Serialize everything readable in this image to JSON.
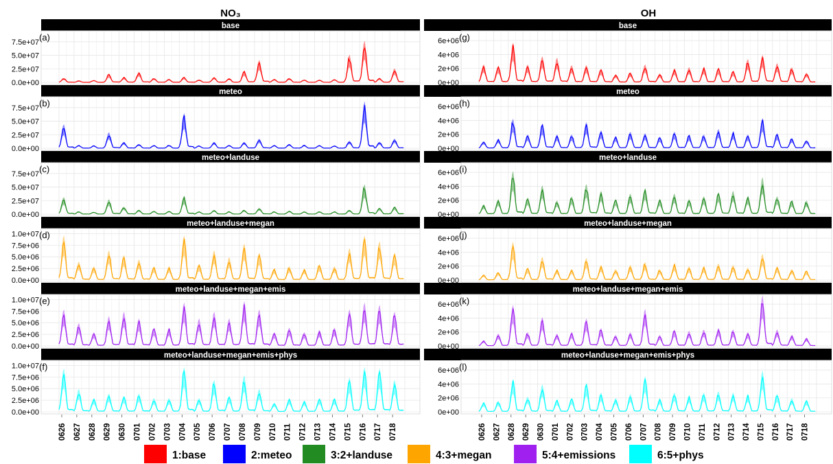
{
  "column_titles": [
    "NO₃",
    "OH"
  ],
  "x_tick_labels": [
    "0626",
    "0627",
    "0628",
    "0629",
    "0630",
    "0701",
    "0702",
    "0703",
    "0704",
    "0705",
    "0706",
    "0707",
    "0708",
    "0709",
    "0710",
    "0711",
    "0712",
    "0713",
    "0714",
    "0715",
    "0716",
    "0717",
    "0718"
  ],
  "legend": [
    {
      "label": "1:base",
      "color": "#ff0000"
    },
    {
      "label": "2:meteo",
      "color": "#0000ff"
    },
    {
      "label": "3:2+landuse",
      "color": "#228b22"
    },
    {
      "label": "4:3+megan",
      "color": "#ffa500"
    },
    {
      "label": "5:4+emissions",
      "color": "#a020f0"
    },
    {
      "label": "6:5+phys",
      "color": "#00ffff"
    }
  ],
  "chart_data": [
    {
      "type": "area",
      "column": "NO3",
      "panel_tag": "(a)",
      "strip": "base",
      "series_color": "#ff0000",
      "y_ticks": [
        "0.0e+00",
        "2.5e+07",
        "5.0e+07",
        "7.5e+07"
      ],
      "ylim": [
        0,
        90000000
      ],
      "x": [
        "0626",
        "0627",
        "0628",
        "0629",
        "0630",
        "0701",
        "0702",
        "0703",
        "0704",
        "0705",
        "0706",
        "0707",
        "0708",
        "0709",
        "0710",
        "0711",
        "0712",
        "0713",
        "0714",
        "0715",
        "0716",
        "0717",
        "0718"
      ],
      "peaks": [
        8000000.0,
        3000000.0,
        4000000.0,
        16000000.0,
        10000000.0,
        20000000.0,
        8000000.0,
        6000000.0,
        10000000.0,
        5000000.0,
        10000000.0,
        8000000.0,
        22000000.0,
        42000000.0,
        6000000.0,
        8000000.0,
        5000000.0,
        5000000.0,
        6000000.0,
        52000000.0,
        78000000.0,
        8000000.0,
        26000000.0
      ]
    },
    {
      "type": "area",
      "column": "NO3",
      "panel_tag": "(b)",
      "strip": "meteo",
      "series_color": "#0000ff",
      "y_ticks": [
        "0.0e+00",
        "2.5e+07",
        "5.0e+07",
        "7.5e+07"
      ],
      "ylim": [
        0,
        90000000
      ],
      "x": [
        "0626",
        "0627",
        "0628",
        "0629",
        "0630",
        "0701",
        "0702",
        "0703",
        "0704",
        "0705",
        "0706",
        "0707",
        "0708",
        "0709",
        "0710",
        "0711",
        "0712",
        "0713",
        "0714",
        "0715",
        "0716",
        "0717",
        "0718"
      ],
      "peaks": [
        45000000.0,
        6000000.0,
        5000000.0,
        30000000.0,
        12000000.0,
        8000000.0,
        6000000.0,
        6000000.0,
        66000000.0,
        5000000.0,
        12000000.0,
        6000000.0,
        12000000.0,
        18000000.0,
        6000000.0,
        8000000.0,
        6000000.0,
        6000000.0,
        5000000.0,
        14000000.0,
        88000000.0,
        12000000.0,
        18000000.0
      ]
    },
    {
      "type": "area",
      "column": "NO3",
      "panel_tag": "(c)",
      "strip": "meteo+landuse",
      "series_color": "#228b22",
      "y_ticks": [
        "0.0e+00",
        "2.5e+07",
        "5.0e+07",
        "7.5e+07"
      ],
      "ylim": [
        0,
        90000000
      ],
      "x": [
        "0626",
        "0627",
        "0628",
        "0629",
        "0630",
        "0701",
        "0702",
        "0703",
        "0704",
        "0705",
        "0706",
        "0707",
        "0708",
        "0709",
        "0710",
        "0711",
        "0712",
        "0713",
        "0714",
        "0715",
        "0716",
        "0717",
        "0718"
      ],
      "peaks": [
        32000000.0,
        5000000.0,
        4000000.0,
        28000000.0,
        14000000.0,
        8000000.0,
        6000000.0,
        6000000.0,
        34000000.0,
        5000000.0,
        8000000.0,
        5000000.0,
        8000000.0,
        12000000.0,
        5000000.0,
        6000000.0,
        5000000.0,
        5000000.0,
        5000000.0,
        8000000.0,
        56000000.0,
        12000000.0,
        14000000.0
      ]
    },
    {
      "type": "area",
      "column": "NO3",
      "panel_tag": "(d)",
      "strip": "meteo+landuse+megan",
      "series_color": "#ffa500",
      "y_ticks": [
        "0.0e+00",
        "2.5e+06",
        "5.0e+06",
        "7.5e+06",
        "1.0e+07"
      ],
      "ylim": [
        0,
        10500000
      ],
      "x": [
        "0626",
        "0627",
        "0628",
        "0629",
        "0630",
        "0701",
        "0702",
        "0703",
        "0704",
        "0705",
        "0706",
        "0707",
        "0708",
        "0709",
        "0710",
        "0711",
        "0712",
        "0713",
        "0714",
        "0715",
        "0716",
        "0717",
        "0718"
      ],
      "peaks": [
        9800000.0,
        4000000.0,
        3000000.0,
        6500000.0,
        5500000.0,
        4500000.0,
        3000000.0,
        3000000.0,
        9800000.0,
        3500000.0,
        6500000.0,
        5000000.0,
        8000000.0,
        6000000.0,
        2500000.0,
        3000000.0,
        2500000.0,
        3500000.0,
        3000000.0,
        7000000.0,
        9800000.0,
        8500000.0,
        6000000.0
      ]
    },
    {
      "type": "area",
      "column": "NO3",
      "panel_tag": "(e)",
      "strip": "meteo+landuse+megan+emis",
      "series_color": "#a020f0",
      "y_ticks": [
        "0.0e+00",
        "2.5e+06",
        "5.0e+06",
        "7.5e+06",
        "1.0e+07"
      ],
      "ylim": [
        0,
        10500000
      ],
      "x": [
        "0626",
        "0627",
        "0628",
        "0629",
        "0630",
        "0701",
        "0702",
        "0703",
        "0704",
        "0705",
        "0706",
        "0707",
        "0708",
        "0709",
        "0710",
        "0711",
        "0712",
        "0713",
        "0714",
        "0715",
        "0716",
        "0717",
        "0718"
      ],
      "peaks": [
        8000000.0,
        5000000.0,
        3000000.0,
        6500000.0,
        7500000.0,
        6000000.0,
        4000000.0,
        4000000.0,
        9500000.0,
        6000000.0,
        7500000.0,
        6000000.0,
        9800000.0,
        8000000.0,
        3000000.0,
        4000000.0,
        3000000.0,
        3500000.0,
        4000000.0,
        8000000.0,
        9500000.0,
        9000000.0,
        7500000.0
      ]
    },
    {
      "type": "area",
      "column": "NO3",
      "panel_tag": "(f)",
      "strip": "meteo+landuse+megan+emis+phys",
      "series_color": "#00ffff",
      "y_ticks": [
        "0.0e+00",
        "2.5e+06",
        "5.0e+06",
        "7.5e+06",
        "1.0e+07"
      ],
      "ylim": [
        0,
        10500000
      ],
      "x": [
        "0626",
        "0627",
        "0628",
        "0629",
        "0630",
        "0701",
        "0702",
        "0703",
        "0704",
        "0705",
        "0706",
        "0707",
        "0708",
        "0709",
        "0710",
        "0711",
        "0712",
        "0713",
        "0714",
        "0715",
        "0716",
        "0717",
        "0718"
      ],
      "peaks": [
        9500000.0,
        5000000.0,
        3000000.0,
        4000000.0,
        3500000.0,
        4000000.0,
        3000000.0,
        3000000.0,
        9800000.0,
        3000000.0,
        7000000.0,
        3500000.0,
        8000000.0,
        5000000.0,
        2000000.0,
        3000000.0,
        2500000.0,
        3000000.0,
        3000000.0,
        7500000.0,
        9800000.0,
        9500000.0,
        7000000.0
      ]
    },
    {
      "type": "area",
      "column": "OH",
      "panel_tag": "(g)",
      "strip": "base",
      "series_color": "#ff0000",
      "y_ticks": [
        "0e+00",
        "2e+06",
        "4e+06",
        "6e+06"
      ],
      "ylim": [
        0,
        7000000
      ],
      "x": [
        "0626",
        "0627",
        "0628",
        "0629",
        "0630",
        "0701",
        "0702",
        "0703",
        "0704",
        "0705",
        "0706",
        "0707",
        "0708",
        "0709",
        "0710",
        "0711",
        "0712",
        "0713",
        "0714",
        "0715",
        "0716",
        "0717",
        "0718"
      ],
      "peaks": [
        2600000.0,
        2400000.0,
        5800000.0,
        2600000.0,
        3800000.0,
        3600000.0,
        2500000.0,
        2500000.0,
        2000000.0,
        1200000.0,
        1500000.0,
        2600000.0,
        1300000.0,
        2000000.0,
        2200000.0,
        2200000.0,
        2100000.0,
        1700000.0,
        3400000.0,
        4000000.0,
        2800000.0,
        2200000.0,
        1400000.0
      ]
    },
    {
      "type": "area",
      "column": "OH",
      "panel_tag": "(h)",
      "strip": "meteo",
      "series_color": "#0000ff",
      "y_ticks": [
        "0e+00",
        "2e+06",
        "4e+06",
        "6e+06"
      ],
      "ylim": [
        0,
        7000000
      ],
      "x": [
        "0626",
        "0627",
        "0628",
        "0629",
        "0630",
        "0701",
        "0702",
        "0703",
        "0704",
        "0705",
        "0706",
        "0707",
        "0708",
        "0709",
        "0710",
        "0711",
        "0712",
        "0713",
        "0714",
        "0715",
        "0716",
        "0717",
        "0718"
      ],
      "peaks": [
        1000000.0,
        1400000.0,
        4300000.0,
        2000000.0,
        3600000.0,
        2000000.0,
        2000000.0,
        3800000.0,
        2600000.0,
        1800000.0,
        2400000.0,
        2200000.0,
        1700000.0,
        2400000.0,
        2000000.0,
        2000000.0,
        2800000.0,
        2400000.0,
        2000000.0,
        4400000.0,
        2200000.0,
        1500000.0,
        1200000.0
      ]
    },
    {
      "type": "area",
      "column": "OH",
      "panel_tag": "(i)",
      "strip": "meteo+landuse",
      "series_color": "#228b22",
      "y_ticks": [
        "0e+00",
        "2e+06",
        "4e+06",
        "6e+06"
      ],
      "ylim": [
        0,
        7000000
      ],
      "x": [
        "0626",
        "0627",
        "0628",
        "0629",
        "0630",
        "0701",
        "0702",
        "0703",
        "0704",
        "0705",
        "0706",
        "0707",
        "0708",
        "0709",
        "0710",
        "0711",
        "0712",
        "0713",
        "0714",
        "0715",
        "0716",
        "0717",
        "0718"
      ],
      "peaks": [
        1400000.0,
        2200000.0,
        6300000.0,
        2400000.0,
        4200000.0,
        2000000.0,
        2600000.0,
        4400000.0,
        3400000.0,
        2200000.0,
        3000000.0,
        3800000.0,
        2200000.0,
        3000000.0,
        2200000.0,
        2600000.0,
        3200000.0,
        3400000.0,
        2600000.0,
        5400000.0,
        2600000.0,
        2000000.0,
        2000000.0
      ]
    },
    {
      "type": "area",
      "column": "OH",
      "panel_tag": "(j)",
      "strip": "meteo+landuse+megan",
      "series_color": "#ffa500",
      "y_ticks": [
        "0e+00",
        "2e+06",
        "4e+06",
        "6e+06"
      ],
      "ylim": [
        0,
        7000000
      ],
      "x": [
        "0626",
        "0627",
        "0628",
        "0629",
        "0630",
        "0701",
        "0702",
        "0703",
        "0704",
        "0705",
        "0706",
        "0707",
        "0708",
        "0709",
        "0710",
        "0711",
        "0712",
        "0713",
        "0714",
        "0715",
        "0716",
        "0717",
        "0718"
      ],
      "peaks": [
        800000.0,
        1200000.0,
        5600000.0,
        1800000.0,
        3400000.0,
        1600000.0,
        1600000.0,
        3200000.0,
        2200000.0,
        1600000.0,
        2200000.0,
        2600000.0,
        1600000.0,
        2400000.0,
        2000000.0,
        2000000.0,
        2400000.0,
        2200000.0,
        1800000.0,
        3800000.0,
        2000000.0,
        1600000.0,
        1400000.0
      ]
    },
    {
      "type": "area",
      "column": "OH",
      "panel_tag": "(k)",
      "strip": "meteo+landuse+megan+emis",
      "series_color": "#a020f0",
      "y_ticks": [
        "0e+00",
        "2e+06",
        "4e+06",
        "6e+06"
      ],
      "ylim": [
        0,
        7000000
      ],
      "x": [
        "0626",
        "0627",
        "0628",
        "0629",
        "0630",
        "0701",
        "0702",
        "0703",
        "0704",
        "0705",
        "0706",
        "0707",
        "0708",
        "0709",
        "0710",
        "0711",
        "0712",
        "0713",
        "0714",
        "0715",
        "0716",
        "0717",
        "0718"
      ],
      "peaks": [
        800000.0,
        1800000.0,
        6000000.0,
        2000000.0,
        4200000.0,
        1800000.0,
        2000000.0,
        4000000.0,
        2600000.0,
        1600000.0,
        2000000.0,
        5400000.0,
        1600000.0,
        2400000.0,
        2200000.0,
        2400000.0,
        2600000.0,
        2400000.0,
        2000000.0,
        7400000.0,
        2400000.0,
        1600000.0,
        1200000.0
      ]
    },
    {
      "type": "area",
      "column": "OH",
      "panel_tag": "(l)",
      "strip": "meteo+landuse+megan+emis+phys",
      "series_color": "#00ffff",
      "y_ticks": [
        "0e+00",
        "2e+06",
        "4e+06",
        "6e+06"
      ],
      "ylim": [
        0,
        7000000
      ],
      "x": [
        "0626",
        "0627",
        "0628",
        "0629",
        "0630",
        "0701",
        "0702",
        "0703",
        "0704",
        "0705",
        "0706",
        "0707",
        "0708",
        "0709",
        "0710",
        "0711",
        "0712",
        "0713",
        "0714",
        "0715",
        "0716",
        "0717",
        "0718"
      ],
      "peaks": [
        1400000.0,
        1600000.0,
        4800000.0,
        2200000.0,
        4000000.0,
        1800000.0,
        2000000.0,
        4200000.0,
        2800000.0,
        2000000.0,
        2600000.0,
        5200000.0,
        2000000.0,
        2800000.0,
        2400000.0,
        2800000.0,
        3000000.0,
        2800000.0,
        2600000.0,
        6000000.0,
        2600000.0,
        2000000.0,
        1800000.0
      ]
    }
  ]
}
